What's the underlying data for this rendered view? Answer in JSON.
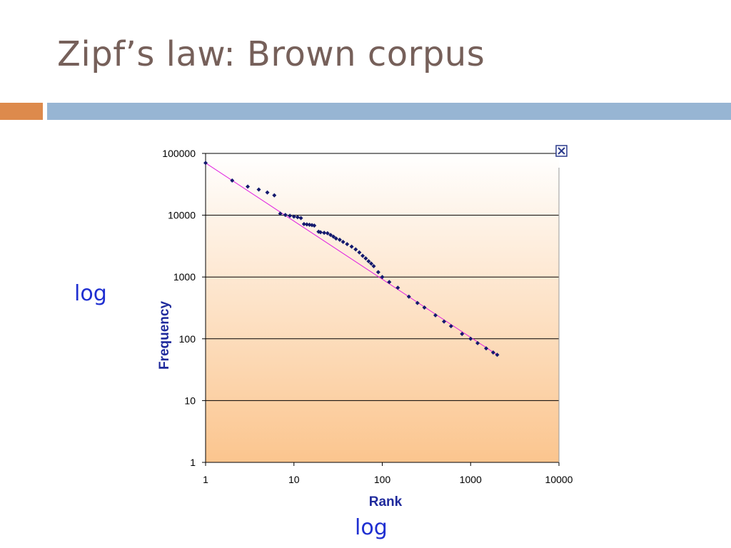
{
  "slide": {
    "title": "Zipf’s law: Brown corpus",
    "note_y": "log",
    "note_x": "log",
    "accent_colors": {
      "orange": "#dd8a4c",
      "blue": "#97b5d3"
    }
  },
  "chart_data": {
    "type": "scatter",
    "title": "",
    "xlabel": "Rank",
    "ylabel": "Frequency",
    "x_scale": "log",
    "y_scale": "log",
    "xlim": [
      1,
      10000
    ],
    "ylim": [
      1,
      100000
    ],
    "x_ticks": [
      "1",
      "10",
      "100",
      "1000",
      "10000"
    ],
    "y_ticks": [
      "1",
      "10",
      "100",
      "1000",
      "10000",
      "100000"
    ],
    "grid": "horizontal",
    "legend": "none",
    "close_icon": "close-box-icon",
    "colors": {
      "points": "#141a6e",
      "trend": "#e020e0",
      "plot_top": "#ffffff",
      "plot_bottom": "#fbc58e"
    },
    "points": [
      [
        1,
        70000
      ],
      [
        2,
        36400
      ],
      [
        3,
        29000
      ],
      [
        4,
        26000
      ],
      [
        5,
        23300
      ],
      [
        6,
        21000
      ],
      [
        7,
        10600
      ],
      [
        8,
        10100
      ],
      [
        9,
        9800
      ],
      [
        10,
        9500
      ],
      [
        11,
        9300
      ],
      [
        12,
        9000
      ],
      [
        13,
        7200
      ],
      [
        14,
        7100
      ],
      [
        15,
        7000
      ],
      [
        16,
        6900
      ],
      [
        17,
        6800
      ],
      [
        19,
        5400
      ],
      [
        20,
        5300
      ],
      [
        22,
        5200
      ],
      [
        24,
        5100
      ],
      [
        26,
        4800
      ],
      [
        28,
        4500
      ],
      [
        30,
        4200
      ],
      [
        33,
        4000
      ],
      [
        36,
        3700
      ],
      [
        40,
        3400
      ],
      [
        45,
        3100
      ],
      [
        50,
        2800
      ],
      [
        55,
        2500
      ],
      [
        60,
        2200
      ],
      [
        65,
        2000
      ],
      [
        70,
        1800
      ],
      [
        75,
        1650
      ],
      [
        80,
        1500
      ],
      [
        90,
        1200
      ],
      [
        100,
        1000
      ],
      [
        120,
        830
      ],
      [
        150,
        670
      ],
      [
        200,
        480
      ],
      [
        250,
        380
      ],
      [
        300,
        320
      ],
      [
        400,
        240
      ],
      [
        500,
        190
      ],
      [
        600,
        160
      ],
      [
        800,
        120
      ],
      [
        1000,
        100
      ],
      [
        1200,
        85
      ],
      [
        1500,
        70
      ],
      [
        1800,
        60
      ],
      [
        2000,
        55
      ]
    ],
    "trend_line": [
      [
        1,
        70000
      ],
      [
        2000,
        55
      ]
    ]
  }
}
